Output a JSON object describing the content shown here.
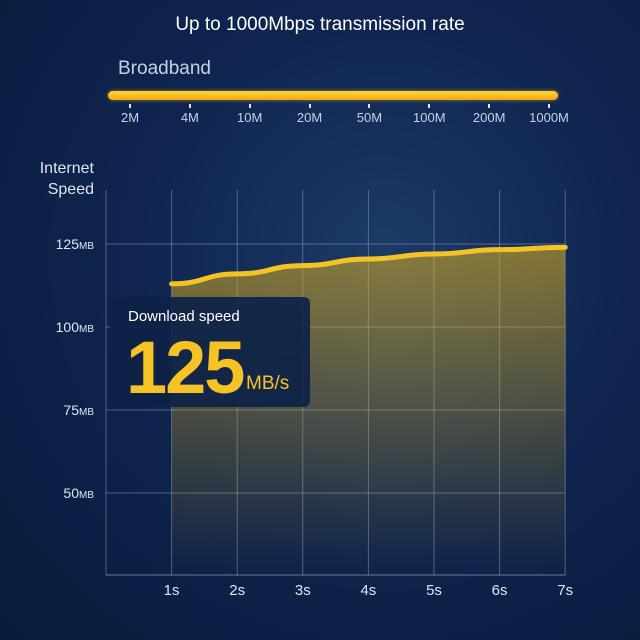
{
  "header": {
    "title": "Up to 1000Mbps transmission rate"
  },
  "broadband": {
    "label": "Broadband",
    "ticks": [
      "2M",
      "4M",
      "10M",
      "20M",
      "50M",
      "100M",
      "200M",
      "1000M"
    ]
  },
  "card": {
    "label": "Download speed",
    "value": "125",
    "unit": "MB/s"
  },
  "colors": {
    "accent": "#f6c326",
    "background": "#0f2550"
  },
  "chart_data": {
    "type": "area",
    "ylabel": "Internet Speed",
    "ylabel_lines": [
      "Internet",
      "Speed"
    ],
    "x": [
      "1s",
      "2s",
      "3s",
      "4s",
      "5s",
      "6s",
      "7s"
    ],
    "xticks": [
      "1s",
      "2s",
      "3s",
      "4s",
      "5s",
      "6s",
      "7s"
    ],
    "yticks": [
      {
        "value": 125,
        "label": "125",
        "unit": "MB"
      },
      {
        "value": 100,
        "label": "100",
        "unit": "MB"
      },
      {
        "value": 75,
        "label": "75",
        "unit": "MB"
      },
      {
        "value": 50,
        "label": "50",
        "unit": "MB"
      }
    ],
    "ylim": [
      25,
      135
    ],
    "series": [
      {
        "values": [
          113,
          116,
          118.5,
          120.5,
          122,
          123.3,
          124
        ]
      }
    ],
    "grid": true
  }
}
